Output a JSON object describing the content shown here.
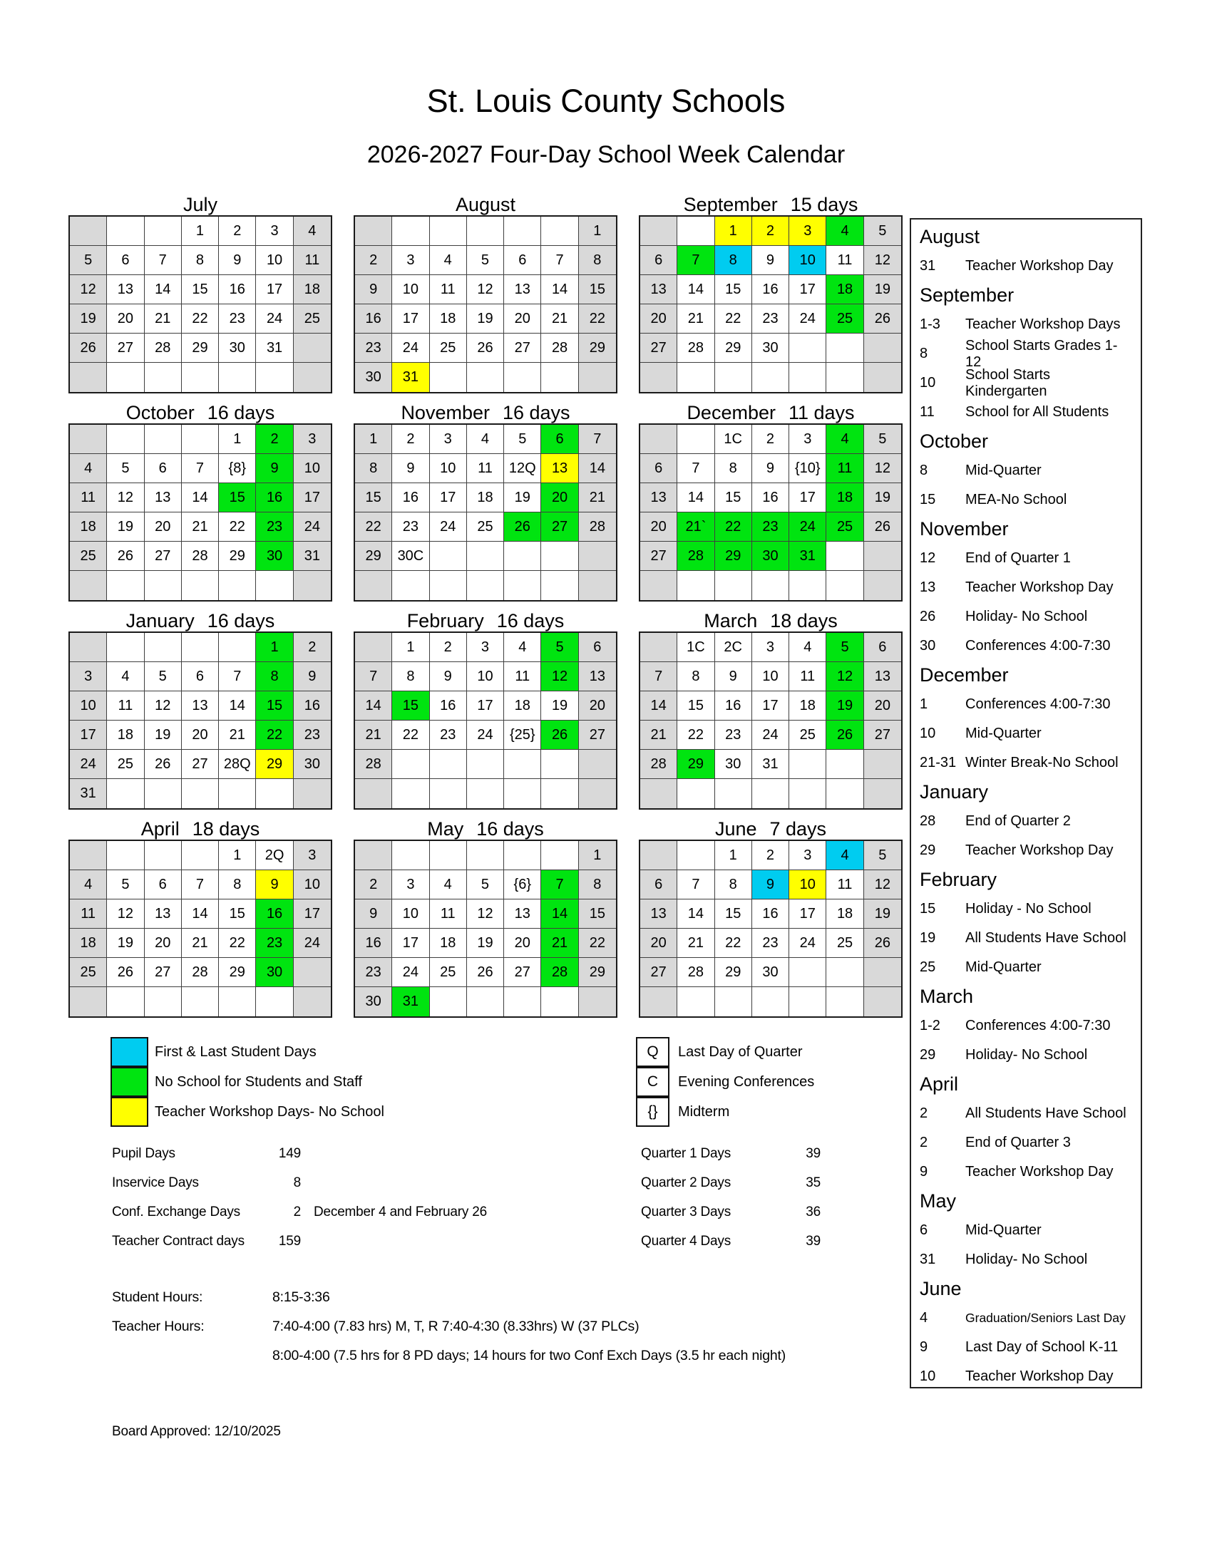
{
  "page": {
    "title": "St. Louis County Schools",
    "subtitle": "2026-2027 Four-Day School Week Calendar",
    "board_approved": "Board Approved: 12/10/2025"
  },
  "colors": {
    "first_last": "#00CCF0",
    "no_school": "#00E410",
    "workshop": "#FFFF00",
    "weekend": "#D9D9D9"
  },
  "months": [
    {
      "name": "July",
      "days": "",
      "cells": [
        "n|",
        "w|",
        "w|",
        "w|1",
        "w|2",
        "w|3",
        "n|4",
        "n|5",
        "w|6",
        "w|7",
        "w|8",
        "w|9",
        "w|10",
        "n|11",
        "n|12",
        "w|13",
        "w|14",
        "w|15",
        "w|16",
        "w|17",
        "n|18",
        "n|19",
        "w|20",
        "w|21",
        "w|22",
        "w|23",
        "w|24",
        "n|25",
        "n|26",
        "w|27",
        "w|28",
        "w|29",
        "w|30",
        "w|31",
        "n|",
        "n|",
        "w|",
        "w|",
        "w|",
        "w|",
        "w|",
        "n|"
      ]
    },
    {
      "name": "August",
      "days": "",
      "cells": [
        "n|",
        "w|",
        "w|",
        "w|",
        "w|",
        "w|",
        "n|1",
        "n|2",
        "w|3",
        "w|4",
        "w|5",
        "w|6",
        "w|7",
        "n|8",
        "n|9",
        "w|10",
        "w|11",
        "w|12",
        "w|13",
        "w|14",
        "n|15",
        "n|16",
        "w|17",
        "w|18",
        "w|19",
        "w|20",
        "w|21",
        "n|22",
        "n|23",
        "w|24",
        "w|25",
        "w|26",
        "w|27",
        "w|28",
        "n|29",
        "n|30",
        "y|31",
        "w|",
        "w|",
        "w|",
        "w|",
        "n|"
      ]
    },
    {
      "name": "September",
      "days": "15 days",
      "cells": [
        "n|",
        "w|",
        "y|1",
        "y|2",
        "y|3",
        "g|4",
        "n|5",
        "n|6",
        "g|7",
        "b|8",
        "w|9",
        "b|10",
        "w|11",
        "n|12",
        "n|13",
        "w|14",
        "w|15",
        "w|16",
        "w|17",
        "g|18",
        "n|19",
        "n|20",
        "w|21",
        "w|22",
        "w|23",
        "w|24",
        "g|25",
        "n|26",
        "n|27",
        "w|28",
        "w|29",
        "w|30",
        "w|",
        "w|",
        "n|",
        "n|",
        "w|",
        "w|",
        "w|",
        "w|",
        "w|",
        "n|"
      ]
    },
    {
      "name": "October",
      "days": "16 days",
      "cells": [
        "n|",
        "w|",
        "w|",
        "w|",
        "w|1",
        "g|2",
        "n|3",
        "n|4",
        "w|5",
        "w|6",
        "w|7",
        "w|{8}",
        "g|9",
        "n|10",
        "n|11",
        "w|12",
        "w|13",
        "w|14",
        "g|15",
        "g|16",
        "n|17",
        "n|18",
        "w|19",
        "w|20",
        "w|21",
        "w|22",
        "g|23",
        "n|24",
        "n|25",
        "w|26",
        "w|27",
        "w|28",
        "w|29",
        "g|30",
        "n|31",
        "n|",
        "w|",
        "w|",
        "w|",
        "w|",
        "w|",
        "n|"
      ]
    },
    {
      "name": "November",
      "days": "16 days",
      "cells": [
        "n|1",
        "w|2",
        "w|3",
        "w|4",
        "w|5",
        "g|6",
        "n|7",
        "n|8",
        "w|9",
        "w|10",
        "w|11",
        "w|12Q",
        "y|13",
        "n|14",
        "n|15",
        "w|16",
        "w|17",
        "w|18",
        "w|19",
        "g|20",
        "n|21",
        "n|22",
        "w|23",
        "w|24",
        "w|25",
        "g|26",
        "g|27",
        "n|28",
        "n|29",
        "w|30C",
        "w|",
        "w|",
        "w|",
        "w|",
        "n|",
        "n|",
        "w|",
        "w|",
        "w|",
        "w|",
        "w|",
        "n|"
      ]
    },
    {
      "name": "December",
      "days": "11 days",
      "cells": [
        "n|",
        "w|",
        "w|1C",
        "w|2",
        "w|3",
        "g|4",
        "n|5",
        "n|6",
        "w|7",
        "w|8",
        "w|9",
        "w|{10}",
        "g|11",
        "n|12",
        "n|13",
        "w|14",
        "w|15",
        "w|16",
        "w|17",
        "g|18",
        "n|19",
        "n|20",
        "g|21`",
        "g|22",
        "g|23",
        "g|24",
        "g|25",
        "n|26",
        "n|27",
        "g|28",
        "g|29",
        "g|30",
        "g|31",
        "w|",
        "n|",
        "n|",
        "w|",
        "w|",
        "w|",
        "w|",
        "w|",
        "n|"
      ]
    },
    {
      "name": "January",
      "days": "16 days",
      "cells": [
        "n|",
        "w|",
        "w|",
        "w|",
        "w|",
        "g|1",
        "n|2",
        "n|3",
        "w|4",
        "w|5",
        "w|6",
        "w|7",
        "g|8",
        "n|9",
        "n|10",
        "w|11",
        "w|12",
        "w|13",
        "w|14",
        "g|15",
        "n|16",
        "n|17",
        "w|18",
        "w|19",
        "w|20",
        "w|21",
        "g|22",
        "n|23",
        "n|24",
        "w|25",
        "w|26",
        "w|27",
        "w|28Q",
        "y|29",
        "n|30",
        "n|31",
        "w|",
        "w|",
        "w|",
        "w|",
        "w|",
        "n|"
      ]
    },
    {
      "name": "February",
      "days": "16 days",
      "cells": [
        "n|",
        "w|1",
        "w|2",
        "w|3",
        "w|4",
        "g|5",
        "n|6",
        "n|7",
        "w|8",
        "w|9",
        "w|10",
        "w|11",
        "g|12",
        "n|13",
        "n|14",
        "g|15",
        "w|16",
        "w|17",
        "w|18",
        "w|19",
        "n|20",
        "n|21",
        "w|22",
        "w|23",
        "w|24",
        "w|{25}",
        "g|26",
        "n|27",
        "n|28",
        "w|",
        "w|",
        "w|",
        "w|",
        "w|",
        "n|",
        "n|",
        "w|",
        "w|",
        "w|",
        "w|",
        "w|",
        "n|"
      ]
    },
    {
      "name": "March",
      "days": "18 days",
      "cells": [
        "n|",
        "w|1C",
        "w|2C",
        "w|3",
        "w|4",
        "g|5",
        "n|6",
        "n|7",
        "w|8",
        "w|9",
        "w|10",
        "w|11",
        "g|12",
        "n|13",
        "n|14",
        "w|15",
        "w|16",
        "w|17",
        "w|18",
        "g|19",
        "n|20",
        "n|21",
        "w|22",
        "w|23",
        "w|24",
        "w|25",
        "g|26",
        "n|27",
        "n|28",
        "g|29",
        "w|30",
        "w|31",
        "w|",
        "w|",
        "n|",
        "n|",
        "w|",
        "w|",
        "w|",
        "w|",
        "w|",
        "n|"
      ]
    },
    {
      "name": "April",
      "days": "18 days",
      "cells": [
        "n|",
        "w|",
        "w|",
        "w|",
        "w|1",
        "w|2Q",
        "n|3",
        "n|4",
        "w|5",
        "w|6",
        "w|7",
        "w|8",
        "y|9",
        "n|10",
        "n|11",
        "w|12",
        "w|13",
        "w|14",
        "w|15",
        "g|16",
        "n|17",
        "n|18",
        "w|19",
        "w|20",
        "w|21",
        "w|22",
        "g|23",
        "n|24",
        "n|25",
        "w|26",
        "w|27",
        "w|28",
        "w|29",
        "g|30",
        "n|",
        "n|",
        "w|",
        "w|",
        "w|",
        "w|",
        "w|",
        "n|"
      ]
    },
    {
      "name": "May",
      "days": "16 days",
      "cells": [
        "n|",
        "w|",
        "w|",
        "w|",
        "w|",
        "w|",
        "n|1",
        "n|2",
        "w|3",
        "w|4",
        "w|5",
        "w|{6}",
        "g|7",
        "n|8",
        "n|9",
        "w|10",
        "w|11",
        "w|12",
        "w|13",
        "g|14",
        "n|15",
        "n|16",
        "w|17",
        "w|18",
        "w|19",
        "w|20",
        "g|21",
        "n|22",
        "n|23",
        "w|24",
        "w|25",
        "w|26",
        "w|27",
        "g|28",
        "n|29",
        "n|30",
        "g|31",
        "w|",
        "w|",
        "w|",
        "w|",
        "n|"
      ]
    },
    {
      "name": "June",
      "days": "7 days",
      "cells": [
        "n|",
        "w|",
        "w|1",
        "w|2",
        "w|3",
        "b|4",
        "n|5",
        "n|6",
        "w|7",
        "w|8",
        "b|9",
        "y|10",
        "w|11",
        "n|12",
        "n|13",
        "w|14",
        "w|15",
        "w|16",
        "w|17",
        "w|18",
        "n|19",
        "n|20",
        "w|21",
        "w|22",
        "w|23",
        "w|24",
        "w|25",
        "n|26",
        "n|27",
        "w|28",
        "w|29",
        "w|30",
        "w|",
        "w|",
        "n|",
        "n|",
        "w|",
        "w|",
        "w|",
        "w|",
        "w|",
        "n|"
      ]
    }
  ],
  "sidebar": [
    {
      "month": "August",
      "events": [
        {
          "date": "31",
          "text": "Teacher Workshop Day"
        }
      ]
    },
    {
      "month": "September",
      "events": [
        {
          "date": "1-3",
          "text": "Teacher Workshop Days"
        },
        {
          "date": "8",
          "text": "School Starts Grades 1-12"
        },
        {
          "date": "10",
          "text": "School Starts Kindergarten"
        },
        {
          "date": "11",
          "text": "School for All Students"
        }
      ]
    },
    {
      "month": "October",
      "events": [
        {
          "date": "8",
          "text": "Mid-Quarter"
        },
        {
          "date": "15",
          "text": "MEA-No School"
        }
      ]
    },
    {
      "month": "November",
      "events": [
        {
          "date": "12",
          "text": "End of Quarter 1"
        },
        {
          "date": "13",
          "text": "Teacher Workshop Day"
        },
        {
          "date": "26",
          "text": "Holiday- No School"
        },
        {
          "date": "30",
          "text": "Conferences 4:00-7:30"
        }
      ]
    },
    {
      "month": "December",
      "events": [
        {
          "date": "1",
          "text": "Conferences 4:00-7:30"
        },
        {
          "date": "10",
          "text": "Mid-Quarter"
        },
        {
          "date": "21-31",
          "text": "Winter Break-No School"
        }
      ]
    },
    {
      "month": "January",
      "events": [
        {
          "date": "28",
          "text": "End of Quarter 2"
        },
        {
          "date": "29",
          "text": "Teacher Workshop Day"
        }
      ]
    },
    {
      "month": "February",
      "events": [
        {
          "date": "15",
          "text": "Holiday - No School"
        },
        {
          "date": "19",
          "text": "All Students Have School"
        },
        {
          "date": "25",
          "text": "Mid-Quarter"
        }
      ]
    },
    {
      "month": "March",
      "events": [
        {
          "date": "1-2",
          "text": "Conferences 4:00-7:30"
        },
        {
          "date": "29",
          "text": "Holiday- No School"
        }
      ]
    },
    {
      "month": "April",
      "events": [
        {
          "date": "2",
          "text": "All Students Have School"
        },
        {
          "date": "2",
          "text": "End of Quarter 3"
        },
        {
          "date": "9",
          "text": "Teacher Workshop Day"
        }
      ]
    },
    {
      "month": "May",
      "events": [
        {
          "date": "6",
          "text": "Mid-Quarter"
        },
        {
          "date": "31",
          "text": "Holiday- No School"
        }
      ]
    },
    {
      "month": "June",
      "events": [
        {
          "date": "4",
          "text": "Graduation/Seniors Last Day",
          "small": true
        },
        {
          "date": "9",
          "text": "Last Day of School K-11"
        },
        {
          "date": "10",
          "text": "Teacher Workshop Day"
        }
      ]
    }
  ],
  "legend": {
    "colors": [
      {
        "key": "first_last",
        "label": "First & Last Student Days"
      },
      {
        "key": "no_school",
        "label": "No School for Students and Staff"
      },
      {
        "key": "workshop",
        "label": "Teacher Workshop Days- No School"
      }
    ],
    "symbols": [
      {
        "symbol": "Q",
        "label": "Last Day of Quarter"
      },
      {
        "symbol": "C",
        "label": "Evening Conferences"
      },
      {
        "symbol": "{}",
        "label": "Midterm"
      }
    ]
  },
  "stats": {
    "left": [
      {
        "label": "Pupil Days",
        "value": "149",
        "note": ""
      },
      {
        "label": "Inservice Days",
        "value": "8",
        "note": ""
      },
      {
        "label": "Conf. Exchange Days",
        "value": "2",
        "note": "December 4 and February 26"
      },
      {
        "label": "Teacher Contract days",
        "value": "159",
        "note": ""
      }
    ],
    "right": [
      {
        "label": "Quarter 1 Days",
        "value": "39"
      },
      {
        "label": "Quarter 2 Days",
        "value": "35"
      },
      {
        "label": "Quarter 3 Days",
        "value": "36"
      },
      {
        "label": "Quarter 4 Days",
        "value": "39"
      }
    ]
  },
  "hours": [
    {
      "label": "Student Hours:",
      "value": "8:15-3:36"
    },
    {
      "label": "Teacher Hours:",
      "value": "7:40-4:00 (7.83 hrs) M, T, R 7:40-4:30 (8.33hrs) W (37 PLCs)"
    },
    {
      "label": "",
      "value": "8:00-4:00 (7.5 hrs for 8 PD days; 14 hours for two Conf Exch Days (3.5 hr each night)"
    }
  ]
}
